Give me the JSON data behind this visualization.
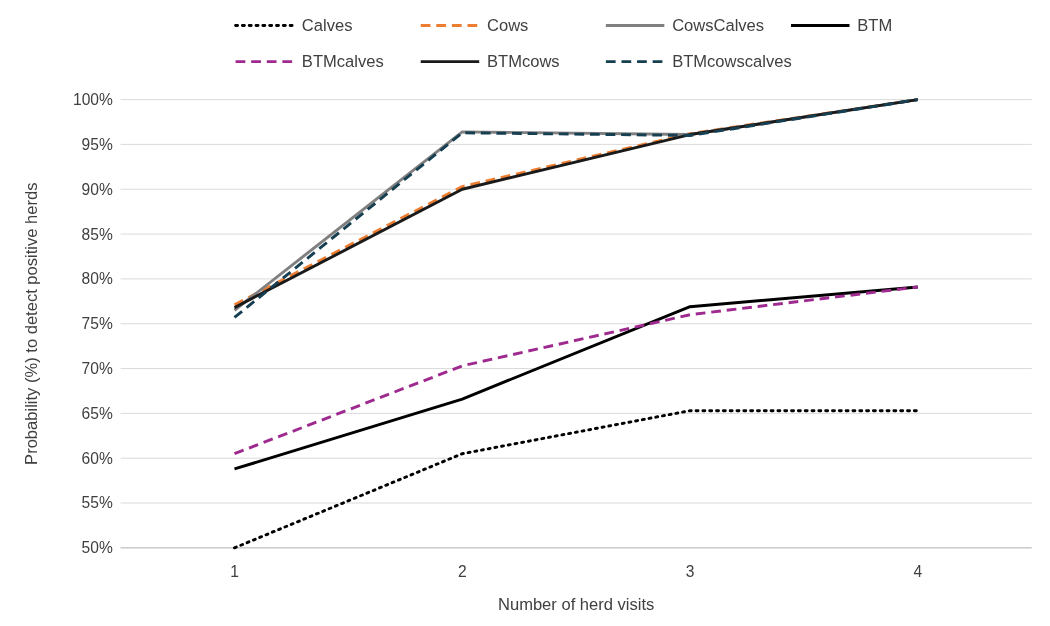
{
  "chart_data": {
    "type": "line",
    "xlabel": "Number of herd visits",
    "ylabel": "Probability (%) to detect positive herds",
    "categories": [
      "1",
      "2",
      "3",
      "4"
    ],
    "ylim": [
      50,
      100
    ],
    "yticks": [
      {
        "value": 50,
        "label": "50%"
      },
      {
        "value": 55,
        "label": "55%"
      },
      {
        "value": 60,
        "label": "60%"
      },
      {
        "value": 65,
        "label": "65%"
      },
      {
        "value": 70,
        "label": "70%"
      },
      {
        "value": 75,
        "label": "75%"
      },
      {
        "value": 80,
        "label": "80%"
      },
      {
        "value": 85,
        "label": "85%"
      },
      {
        "value": 90,
        "label": "90%"
      },
      {
        "value": 95,
        "label": "95%"
      },
      {
        "value": 100,
        "label": "100%"
      }
    ],
    "grid": "y",
    "legend": "top",
    "marker": "none",
    "series": [
      {
        "name": "Calves",
        "color": "#000000",
        "line_style": "dotted",
        "values": [
          50,
          60.5,
          65.3,
          65.3
        ]
      },
      {
        "name": "Cows",
        "color": "#ed7d31",
        "line_style": "dashed",
        "values": [
          77.1,
          90.3,
          96.2,
          100
        ]
      },
      {
        "name": "CowsCalves",
        "color": "#808080",
        "line_style": "solid",
        "values": [
          76.5,
          96.4,
          96.1,
          100
        ]
      },
      {
        "name": "BTM",
        "color": "#000000",
        "line_style": "solid",
        "values": [
          58.8,
          66.6,
          76.9,
          79.1
        ]
      },
      {
        "name": "BTMcalves",
        "color": "#9e2a8f",
        "line_style": "dashed",
        "values": [
          60.5,
          70.3,
          76.0,
          79.1
        ]
      },
      {
        "name": "BTMcows",
        "color": "#1a1a1a",
        "line_style": "solid",
        "values": [
          76.8,
          90.0,
          96.1,
          100
        ]
      },
      {
        "name": "BTMcowscalves",
        "color": "#163f52",
        "line_style": "dashed",
        "values": [
          75.7,
          96.3,
          96.0,
          100
        ]
      }
    ]
  }
}
